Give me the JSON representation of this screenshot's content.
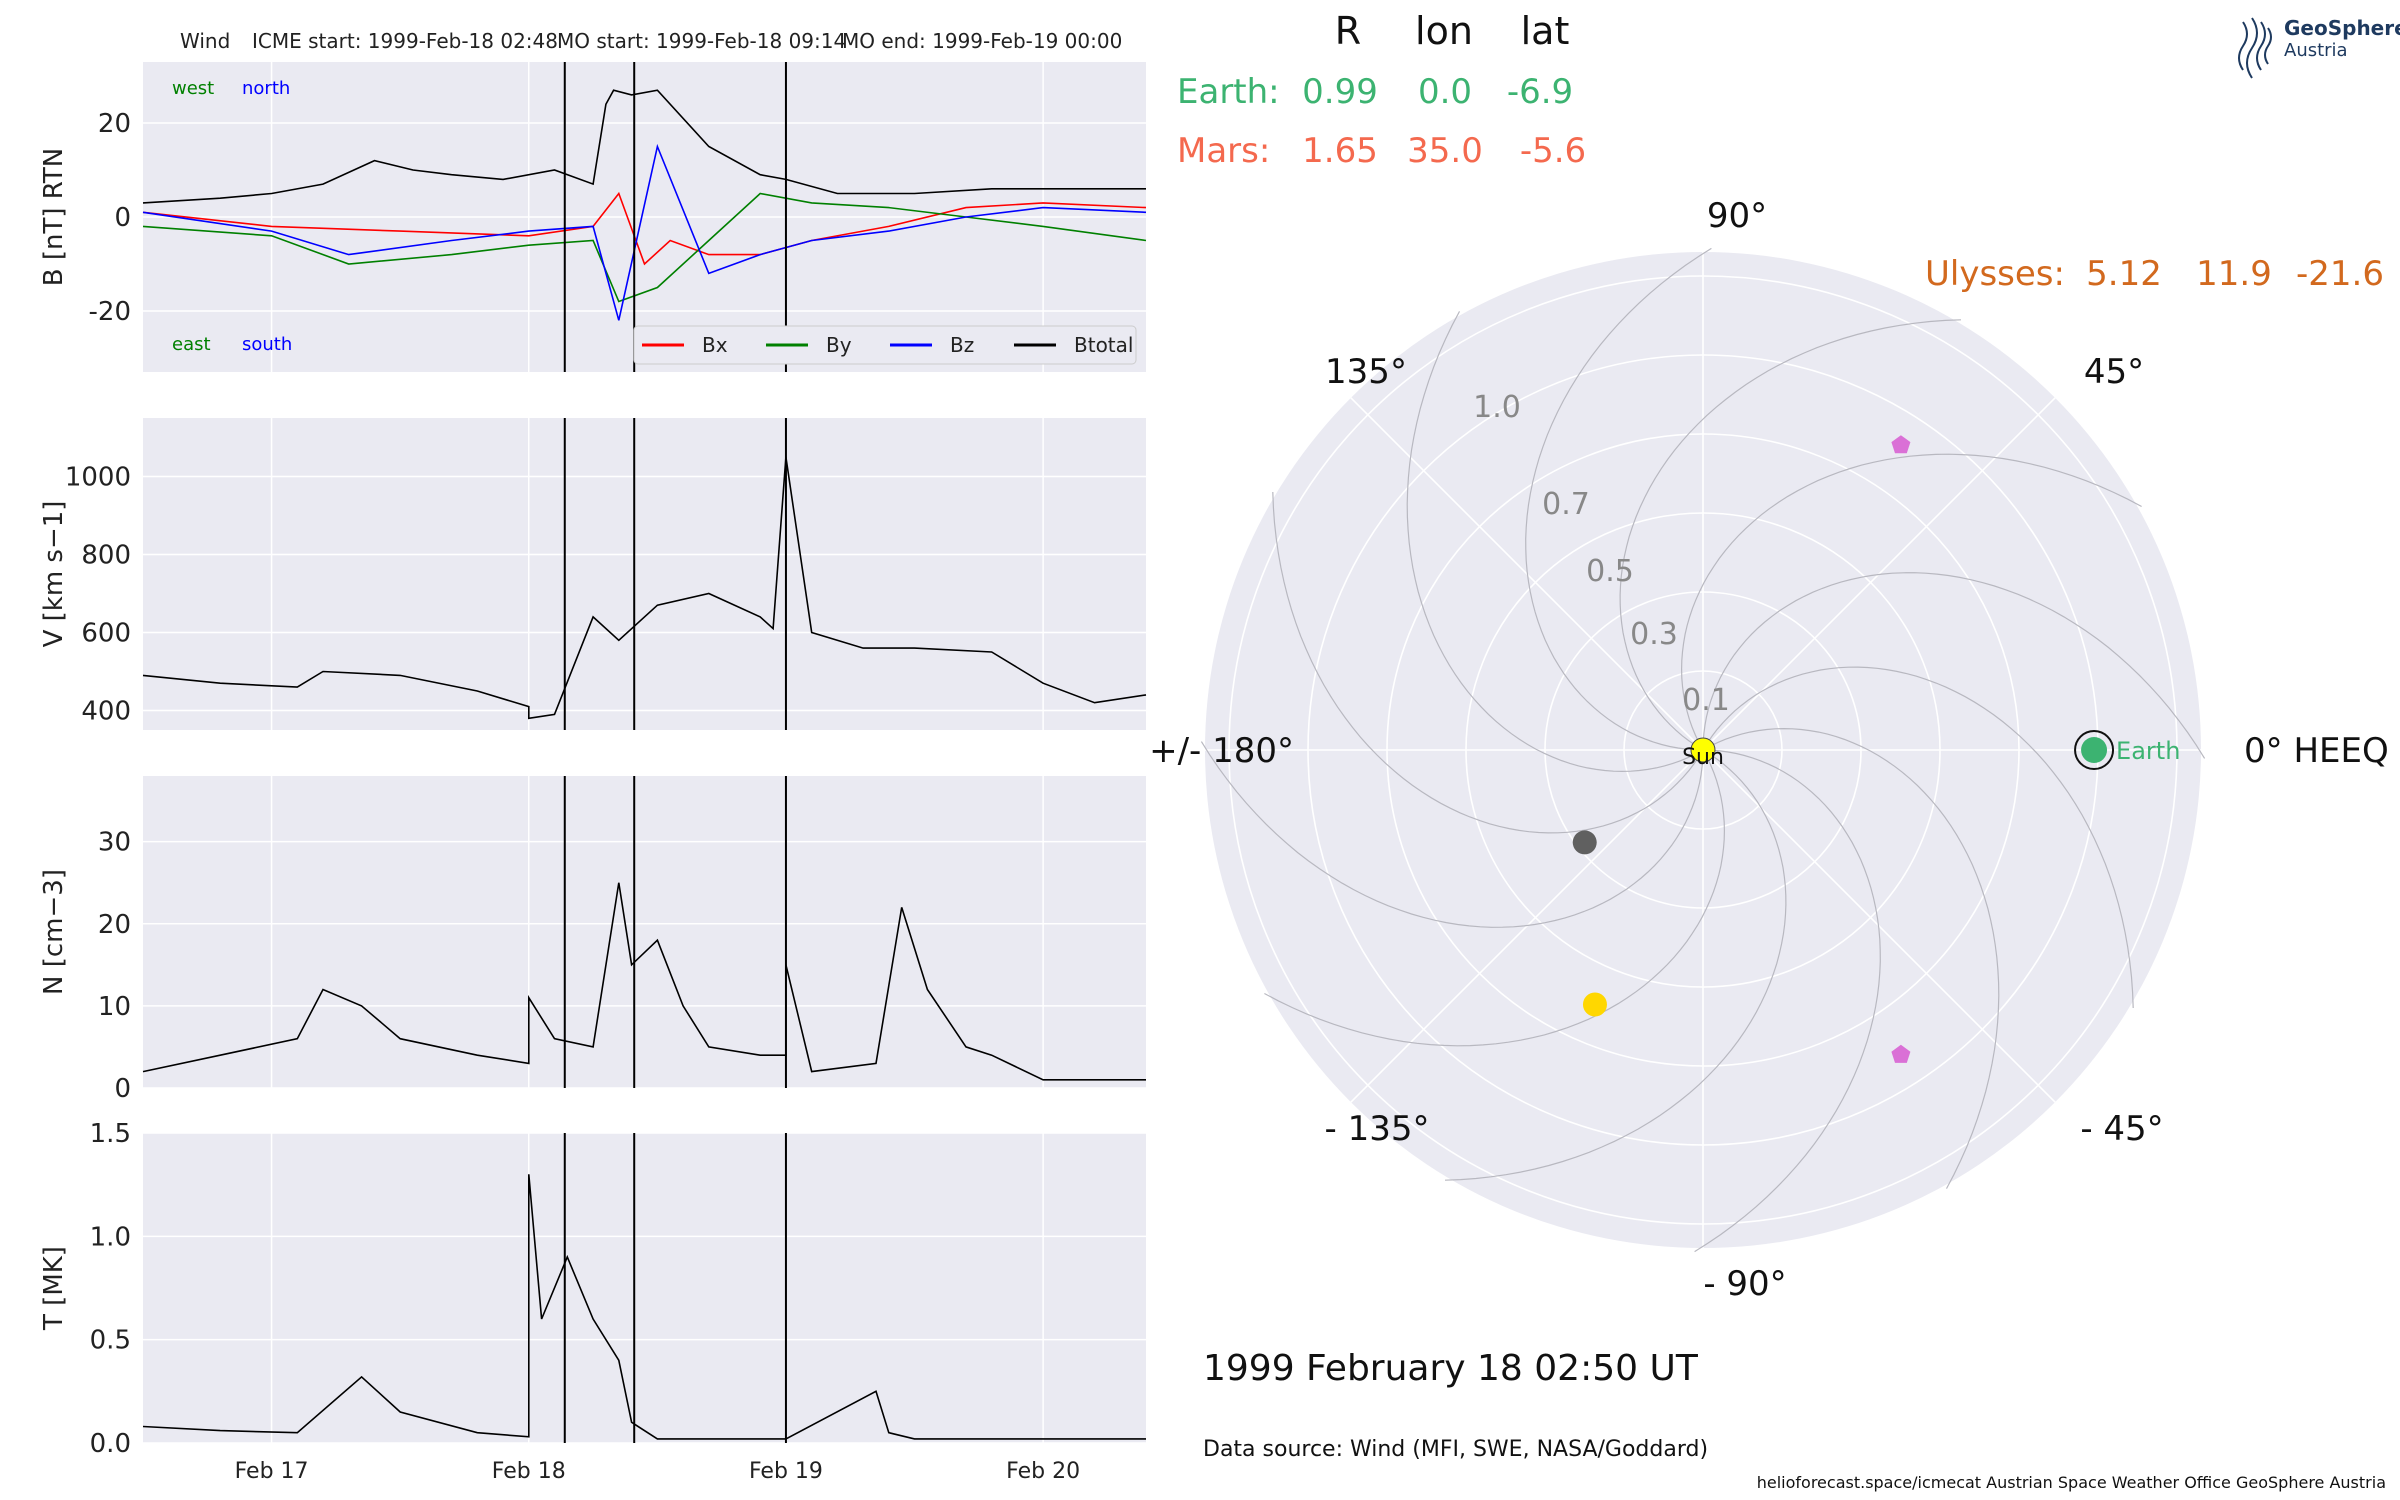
{
  "header": {
    "spacecraft": "Wind",
    "icme_start": "ICME start: 1999-Feb-18 02:48",
    "mo_start": "MO start: 1999-Feb-18 09:14",
    "mo_end": "MO end: 1999-Feb-19 00:00"
  },
  "logo": {
    "line1": "GeoSphere",
    "line2": "Austria",
    "color": "#1e3a5f"
  },
  "positions": {
    "col_headers": [
      "R",
      "lon",
      "lat"
    ],
    "earth": {
      "label": "Earth:",
      "R": "0.99",
      "lon": "0.0",
      "lat": "-6.9",
      "color": "#3cb371"
    },
    "mars": {
      "label": "Mars:",
      "R": "1.65",
      "lon": "35.0",
      "lat": "-5.6",
      "color": "#f4694e"
    },
    "ulysses": {
      "label": "Ulysses:",
      "R": "5.12",
      "lon": "11.9",
      "lat": "-21.6",
      "color": "#d2691e"
    }
  },
  "date_label": "1999 February 18  02:50 UT",
  "data_source": "Data source: Wind (MFI, SWE, NASA/Goddard)",
  "footer": "helioforecast.space/icmecat   Austrian Space Weather Office   GeoSphere Austria",
  "colors": {
    "panel_bg": "#eaeaf2",
    "bx": "#ff0000",
    "by": "#008000",
    "bz": "#0000ff",
    "btotal": "#000000",
    "earth": "#3cb371",
    "sun": "#ffff00",
    "pentagon": "#da70d6",
    "gold": "#ffd700",
    "grey": "#606060"
  },
  "chart_data": [
    {
      "type": "line",
      "ylabel": "B [nT] RTN",
      "ylim": [
        -33,
        33
      ],
      "yticks": [
        -20,
        0,
        20
      ],
      "legend": [
        "Bx",
        "By",
        "Bz",
        "Btotal"
      ],
      "annotations": {
        "top_left": [
          "west",
          "north"
        ],
        "bottom_left": [
          "east",
          "south"
        ]
      },
      "x_unit": "days from 1999-Feb-16 12:00",
      "series": [
        {
          "name": "Btotal",
          "x": [
            0,
            0.3,
            0.5,
            0.7,
            0.9,
            1.05,
            1.2,
            1.4,
            1.6,
            1.75,
            1.8,
            1.83,
            1.9,
            2.0,
            2.2,
            2.4,
            2.5,
            2.7,
            3.0,
            3.3,
            3.6,
            3.9
          ],
          "values": [
            3,
            4,
            5,
            7,
            12,
            10,
            9,
            8,
            10,
            7,
            24,
            27,
            26,
            27,
            15,
            9,
            8,
            5,
            5,
            6,
            6,
            6
          ]
        },
        {
          "name": "Bx",
          "x": [
            0,
            0.5,
            1.0,
            1.5,
            1.75,
            1.85,
            1.95,
            2.05,
            2.2,
            2.4,
            2.6,
            2.9,
            3.2,
            3.5,
            3.9
          ],
          "values": [
            1,
            -2,
            -3,
            -4,
            -2,
            5,
            -10,
            -5,
            -8,
            -8,
            -5,
            -2,
            2,
            3,
            2
          ]
        },
        {
          "name": "By",
          "x": [
            0,
            0.5,
            0.8,
            1.2,
            1.5,
            1.75,
            1.85,
            2.0,
            2.2,
            2.4,
            2.6,
            2.9,
            3.2,
            3.5,
            3.9
          ],
          "values": [
            -2,
            -4,
            -10,
            -8,
            -6,
            -5,
            -18,
            -15,
            -5,
            5,
            3,
            2,
            0,
            -2,
            -5
          ]
        },
        {
          "name": "Bz",
          "x": [
            0,
            0.5,
            0.8,
            1.2,
            1.5,
            1.75,
            1.85,
            2.0,
            2.2,
            2.4,
            2.6,
            2.9,
            3.2,
            3.5,
            3.9
          ],
          "values": [
            1,
            -3,
            -8,
            -5,
            -3,
            -2,
            -22,
            15,
            -12,
            -8,
            -5,
            -3,
            0,
            2,
            1
          ]
        }
      ]
    },
    {
      "type": "line",
      "ylabel": "V [km s−1]",
      "ylim": [
        350,
        1150
      ],
      "yticks": [
        400,
        600,
        800,
        1000
      ],
      "series": [
        {
          "name": "V",
          "x": [
            0,
            0.3,
            0.6,
            0.7,
            1.0,
            1.3,
            1.5,
            1.5,
            1.6,
            1.75,
            1.85,
            2.0,
            2.2,
            2.4,
            2.45,
            2.5,
            2.6,
            2.8,
            3.0,
            3.3,
            3.5,
            3.7,
            3.9
          ],
          "values": [
            490,
            470,
            460,
            500,
            490,
            450,
            410,
            380,
            390,
            640,
            580,
            670,
            700,
            640,
            610,
            1050,
            600,
            560,
            560,
            550,
            470,
            420,
            440
          ]
        }
      ]
    },
    {
      "type": "line",
      "ylabel": "N [cm−3]",
      "ylim": [
        0,
        38
      ],
      "yticks": [
        0,
        10,
        20,
        30
      ],
      "series": [
        {
          "name": "N",
          "x": [
            0,
            0.3,
            0.6,
            0.7,
            0.85,
            1.0,
            1.3,
            1.5,
            1.5,
            1.6,
            1.75,
            1.85,
            1.9,
            2.0,
            2.1,
            2.2,
            2.4,
            2.5,
            2.5,
            2.6,
            2.85,
            2.95,
            3.05,
            3.2,
            3.3,
            3.5,
            3.9
          ],
          "values": [
            2,
            4,
            6,
            12,
            10,
            6,
            4,
            3,
            11,
            6,
            5,
            25,
            15,
            18,
            10,
            5,
            4,
            4,
            15,
            2,
            3,
            22,
            12,
            5,
            4,
            1,
            1
          ]
        }
      ]
    },
    {
      "type": "line",
      "ylabel": "T [MK]",
      "ylim": [
        0,
        1.5
      ],
      "yticks": [
        0.0,
        0.5,
        1.0,
        1.5
      ],
      "x_tick_labels": [
        "Feb 17",
        "Feb 18",
        "Feb 19",
        "Feb 20"
      ],
      "series": [
        {
          "name": "T",
          "x": [
            0,
            0.3,
            0.6,
            0.85,
            1.0,
            1.3,
            1.5,
            1.5,
            1.55,
            1.65,
            1.75,
            1.85,
            1.9,
            2.0,
            2.5,
            2.85,
            2.9,
            3.0,
            3.5,
            3.9
          ],
          "values": [
            0.08,
            0.06,
            0.05,
            0.32,
            0.15,
            0.05,
            0.03,
            1.3,
            0.6,
            0.9,
            0.6,
            0.4,
            0.1,
            0.02,
            0.02,
            0.25,
            0.05,
            0.02,
            0.02,
            0.02
          ]
        }
      ]
    },
    {
      "type": "scatter",
      "subtype": "polar",
      "angle_labels": [
        "0° HEEQ",
        "45°",
        "90°",
        "135°",
        "+/- 180°",
        "- 135°",
        "- 90°",
        "- 45°"
      ],
      "radius_labels": [
        "0.1",
        "0.3",
        "0.5",
        "0.7",
        "1.0"
      ],
      "markers": [
        {
          "label": "Sun",
          "r": 0,
          "lon": 0,
          "shape": "circle",
          "color": "#ffff00"
        },
        {
          "label": "Earth",
          "r": 0.99,
          "lon": 0,
          "shape": "circle",
          "color": "#3cb371"
        },
        {
          "label": "",
          "r": 0.38,
          "lon": -142,
          "shape": "circle",
          "color": "#606060"
        },
        {
          "label": "",
          "r": 0.7,
          "lon": -113,
          "shape": "circle",
          "color": "#ffd700"
        },
        {
          "label": "",
          "r": 0.92,
          "lon": 57,
          "shape": "pentagon",
          "color": "#da70d6"
        },
        {
          "label": "",
          "r": 0.92,
          "lon": -57,
          "shape": "pentagon",
          "color": "#da70d6"
        }
      ]
    }
  ]
}
